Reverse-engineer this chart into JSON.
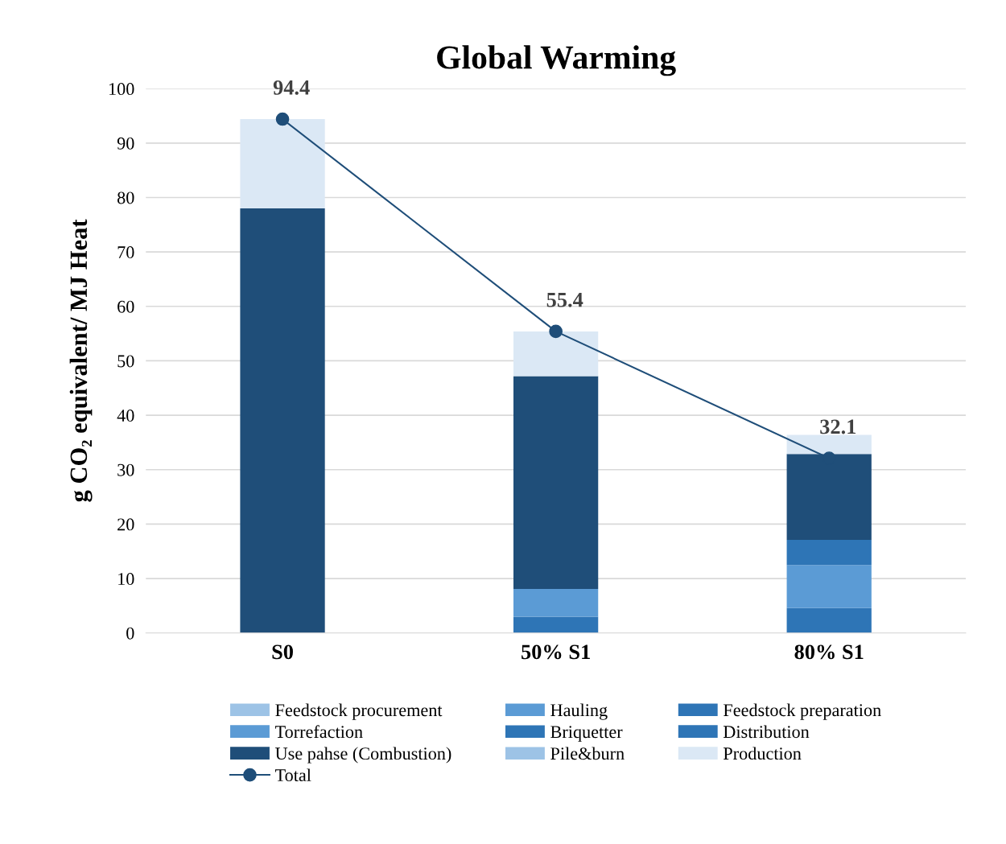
{
  "chart_data": {
    "type": "bar",
    "title": "Global Warming",
    "ylabel": "g CO₂ equivalent/ MJ Heat",
    "categories": [
      "S0",
      "50% S1",
      "80% S1"
    ],
    "stacked": true,
    "ylim": [
      0,
      100
    ],
    "yticks": [
      0,
      10,
      20,
      30,
      40,
      50,
      60,
      70,
      80,
      90,
      100
    ],
    "grid": "y",
    "legend": "bottom",
    "series": [
      {
        "name": "Feedstock procurement",
        "color": "#9dc3e6",
        "values": [
          0,
          0,
          0
        ]
      },
      {
        "name": "Hauling",
        "color": "#5b9bd5",
        "values": [
          0,
          0,
          0
        ]
      },
      {
        "name": "Feedstock preparation",
        "color": "#2e75b6",
        "values": [
          0,
          3.0,
          4.6
        ]
      },
      {
        "name": "Torrefaction",
        "color": "#5b9bd5",
        "values": [
          0,
          5.1,
          7.9
        ]
      },
      {
        "name": "Briquetter",
        "color": "#2e75b6",
        "values": [
          0,
          0,
          4.6
        ]
      },
      {
        "name": "Distribution",
        "color": "#2e75b6",
        "values": [
          0,
          0,
          0
        ]
      },
      {
        "name": "Use pahse (Combustion)",
        "color": "#1f4e79",
        "values": [
          78.0,
          39.1,
          15.8
        ]
      },
      {
        "name": "Pile&burn",
        "color": "#9dc3e6",
        "values": [
          0,
          0,
          0
        ]
      },
      {
        "name": "Production",
        "color": "#dbe8f5",
        "values": [
          16.4,
          8.2,
          3.5
        ]
      },
      {
        "name": "Total",
        "type": "line",
        "color": "#1f4e79",
        "marker": "circle",
        "values": [
          94.4,
          55.4,
          32.1
        ],
        "value_labels": [
          "94.4",
          "55.4",
          "32.1"
        ]
      }
    ]
  }
}
